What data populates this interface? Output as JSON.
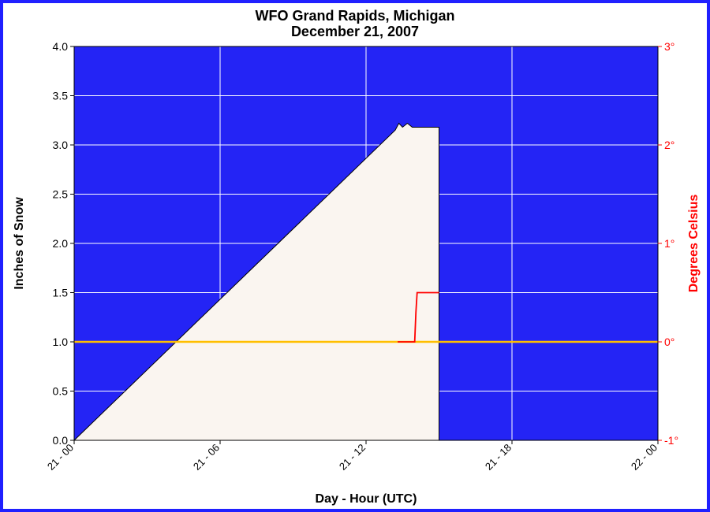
{
  "chart": {
    "type": "area-dual-axis",
    "title_line1": "WFO Grand Rapids, Michigan",
    "title_line2": "December 21, 2007",
    "title_fontsize": 18,
    "background_color": "#ffffff",
    "border_color": "#2020ff",
    "plot_bgcolor": "#2424f5",
    "area_fill_color": "#faf5f0",
    "grid_color": "#ffffff",
    "axis_label_fontsize": 16,
    "tick_fontsize": 14,
    "x": {
      "label": "Day - Hour (UTC)",
      "ticks": [
        "21 - 00",
        "21 - 06",
        "21 - 12",
        "21 - 18",
        "22 - 00"
      ],
      "min": 0,
      "max": 24
    },
    "y_left": {
      "label": "Inches of Snow",
      "min": 0.0,
      "max": 4.0,
      "tick_step": 0.5,
      "ticks": [
        "0.0",
        "0.5",
        "1.0",
        "1.5",
        "2.0",
        "2.5",
        "3.0",
        "3.5",
        "4.0"
      ],
      "color": "#000000"
    },
    "y_right": {
      "label": "Degrees Celsius",
      "min": -1,
      "max": 3,
      "ticks": [
        "-1°",
        "0°",
        "1°",
        "2°",
        "3°"
      ],
      "color": "#ff0000"
    },
    "snow_series": {
      "points": [
        [
          0,
          0.0
        ],
        [
          13.2,
          3.15
        ],
        [
          13.35,
          3.22
        ],
        [
          13.5,
          3.18
        ],
        [
          13.7,
          3.22
        ],
        [
          13.9,
          3.18
        ],
        [
          15.0,
          3.18
        ],
        [
          15.0,
          0.0
        ]
      ]
    },
    "temp_series": {
      "color": "#ff0000",
      "points": [
        [
          13.3,
          0.0
        ],
        [
          14.0,
          0.0
        ],
        [
          14.05,
          0.3
        ],
        [
          14.1,
          0.5
        ],
        [
          15.0,
          0.5
        ]
      ]
    },
    "zero_line": {
      "color": "#ffbf00",
      "y_celsius": 0
    }
  }
}
